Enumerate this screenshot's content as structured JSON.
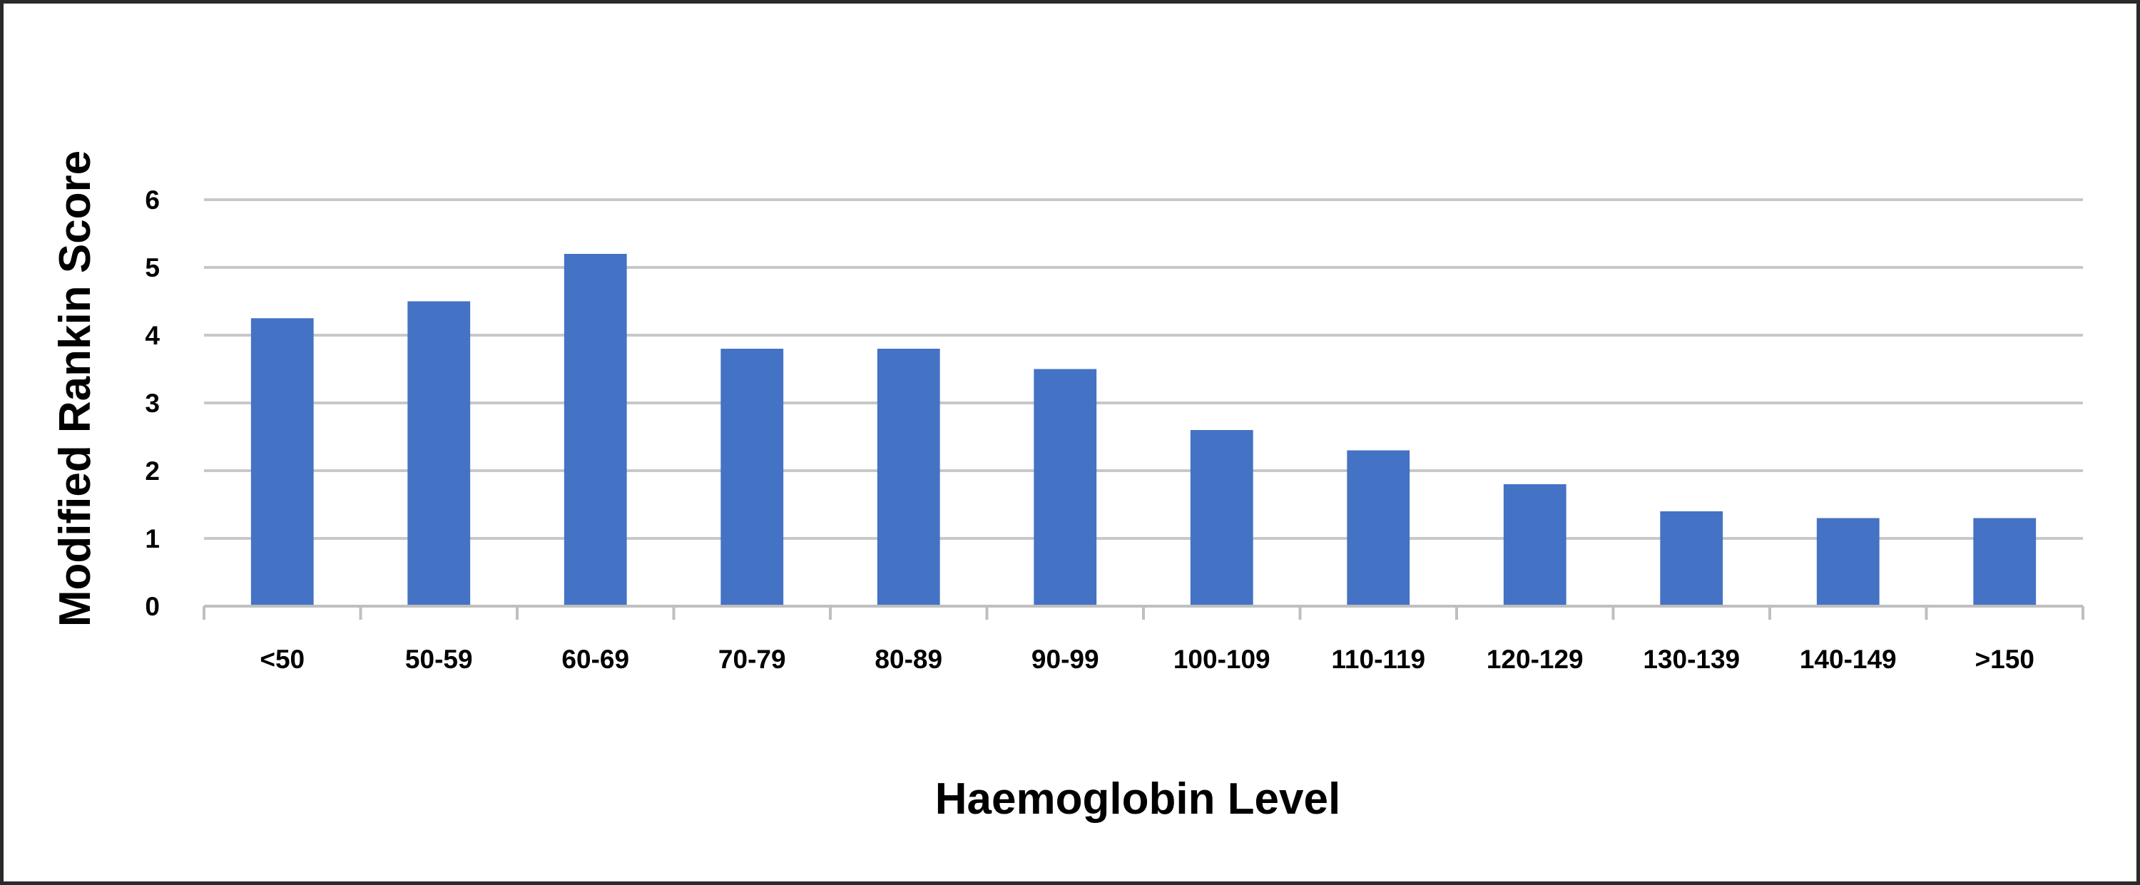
{
  "chart_data": {
    "type": "bar",
    "title": "",
    "xlabel": "Haemoglobin Level",
    "ylabel": "Modified Rankin Score",
    "categories": [
      "<50",
      "50-59",
      "60-69",
      "70-79",
      "80-89",
      "90-99",
      "100-109",
      "110-119",
      "120-129",
      "130-139",
      "140-149",
      ">150"
    ],
    "values": [
      4.25,
      4.5,
      5.2,
      3.8,
      3.8,
      3.5,
      2.6,
      2.3,
      1.8,
      1.4,
      1.3,
      1.3
    ],
    "ylim": [
      0,
      6
    ],
    "yticks": [
      "0",
      "1",
      "2",
      "3",
      "4",
      "5",
      "6"
    ],
    "grid": true,
    "legend": "none",
    "colors": {
      "bar": "#4472C4",
      "grid": "#C8C8C8",
      "axis": "#BFBFBF",
      "text": "#000000",
      "border": "#2a2a2a"
    }
  }
}
